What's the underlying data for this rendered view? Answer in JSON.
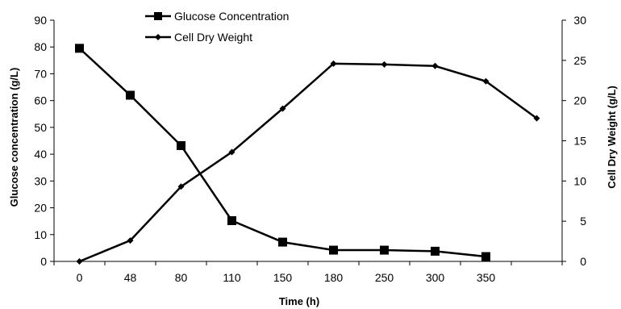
{
  "chart_data": {
    "type": "line",
    "title": "",
    "xlabel": "Time (h)",
    "ylabel_left": "Glucose concentration (g/L)",
    "ylabel_right": "Cell Dry Weight (g/L)",
    "categories": [
      "0",
      "48",
      "80",
      "110",
      "150",
      "180",
      "250",
      "300",
      "350",
      ""
    ],
    "ylim_left": [
      0,
      90
    ],
    "yticks_left": [
      0,
      10,
      20,
      30,
      40,
      50,
      60,
      70,
      80,
      90
    ],
    "ylim_right": [
      0,
      30
    ],
    "yticks_right": [
      0,
      5,
      10,
      15,
      20,
      25,
      30
    ],
    "grid": false,
    "legend_position": "top",
    "series": [
      {
        "name": "Glucose Concentration",
        "axis": "left",
        "marker": "square",
        "color": "#000000",
        "values": [
          79.5,
          62,
          43.2,
          15.2,
          7.2,
          4.2,
          4.2,
          3.8,
          1.8,
          null
        ]
      },
      {
        "name": "Cell Dry Weight",
        "axis": "right",
        "marker": "diamond",
        "color": "#000000",
        "values": [
          0,
          2.6,
          9.3,
          13.6,
          19,
          24.6,
          24.5,
          24.3,
          22.4,
          17.8
        ]
      }
    ]
  }
}
